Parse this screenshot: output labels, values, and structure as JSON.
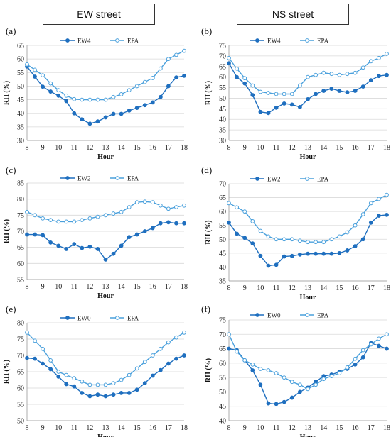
{
  "headers": {
    "left": "EW street",
    "right": "NS street"
  },
  "colors": {
    "ew": "#1f6fbf",
    "epa": "#4aa0dc"
  },
  "chart_data": [
    {
      "id": "a",
      "label": "(a)",
      "type": "line",
      "xlabel": "Hour",
      "ylabel": "RH (%)",
      "xlim": [
        8,
        18
      ],
      "ylim": [
        30,
        65
      ],
      "ytick_step": 5,
      "xticks": [
        8,
        9,
        10,
        11,
        12,
        13,
        14,
        15,
        16,
        17,
        18
      ],
      "x": [
        8,
        8.5,
        9,
        9.5,
        10,
        10.5,
        11,
        11.5,
        12,
        12.5,
        13,
        13.5,
        14,
        14.5,
        15,
        15.5,
        16,
        16.5,
        17,
        17.5,
        18
      ],
      "series": [
        {
          "name": "EW4",
          "style": "filled",
          "values": [
            57.2,
            53.5,
            49.8,
            48.0,
            46.5,
            44.5,
            40.0,
            37.8,
            36.2,
            37.0,
            38.5,
            39.8,
            39.8,
            41.0,
            42.0,
            43.0,
            44.0,
            46.0,
            50.0,
            53.2,
            53.8
          ]
        },
        {
          "name": "EPA",
          "style": "open",
          "values": [
            58.0,
            56.0,
            54.0,
            51.0,
            48.5,
            46.5,
            45.2,
            45.0,
            45.0,
            45.0,
            45.0,
            46.0,
            47.0,
            48.5,
            50.0,
            51.5,
            53.0,
            56.5,
            60.0,
            61.5,
            63.0
          ]
        }
      ]
    },
    {
      "id": "b",
      "label": "(b)",
      "type": "line",
      "xlabel": "Hour",
      "ylabel": "RH (%)",
      "xlim": [
        8,
        18
      ],
      "ylim": [
        30,
        75
      ],
      "ytick_step": 5,
      "xticks": [
        8,
        9,
        10,
        11,
        12,
        13,
        14,
        15,
        16,
        17,
        18
      ],
      "x": [
        8,
        8.5,
        9,
        9.5,
        10,
        10.5,
        11,
        11.5,
        12,
        12.5,
        13,
        13.5,
        14,
        14.5,
        15,
        15.5,
        16,
        16.5,
        17,
        17.5,
        18
      ],
      "series": [
        {
          "name": "EW4",
          "style": "filled",
          "values": [
            66.5,
            60.0,
            57.0,
            51.5,
            43.5,
            43.0,
            45.5,
            47.5,
            47.0,
            45.8,
            49.5,
            52.0,
            53.5,
            54.5,
            53.5,
            52.8,
            53.5,
            55.5,
            58.5,
            60.5,
            61.0
          ]
        },
        {
          "name": "EPA",
          "style": "open",
          "values": [
            69.0,
            64.0,
            59.5,
            56.0,
            53.0,
            52.5,
            52.0,
            52.0,
            52.0,
            56.0,
            60.0,
            61.0,
            62.0,
            61.5,
            61.0,
            61.5,
            62.0,
            64.5,
            67.5,
            69.0,
            71.0
          ]
        }
      ]
    },
    {
      "id": "c",
      "label": "(c)",
      "type": "line",
      "xlabel": "Hour",
      "ylabel": "RH (%)",
      "xlim": [
        8,
        18
      ],
      "ylim": [
        55,
        85
      ],
      "ytick_step": 5,
      "xticks": [
        8,
        9,
        10,
        11,
        12,
        13,
        14,
        15,
        16,
        17,
        18
      ],
      "x": [
        8,
        8.5,
        9,
        9.5,
        10,
        10.5,
        11,
        11.5,
        12,
        12.5,
        13,
        13.5,
        14,
        14.5,
        15,
        15.5,
        16,
        16.5,
        17,
        17.5,
        18
      ],
      "series": [
        {
          "name": "EW2",
          "style": "filled",
          "values": [
            69.0,
            69.0,
            68.8,
            66.5,
            65.5,
            64.5,
            66.0,
            64.8,
            65.2,
            64.5,
            61.2,
            63.0,
            65.5,
            68.2,
            69.0,
            70.0,
            71.0,
            72.5,
            72.8,
            72.5,
            72.5
          ]
        },
        {
          "name": "EPA",
          "style": "open",
          "values": [
            76.0,
            75.0,
            74.0,
            73.5,
            73.0,
            73.0,
            73.0,
            73.5,
            74.0,
            74.5,
            75.0,
            75.5,
            76.0,
            77.5,
            79.0,
            79.2,
            79.0,
            78.0,
            77.0,
            77.5,
            78.0
          ]
        }
      ]
    },
    {
      "id": "d",
      "label": "(d)",
      "type": "line",
      "xlabel": "Hour",
      "ylabel": "RH (%)",
      "xlim": [
        8,
        18
      ],
      "ylim": [
        35,
        70
      ],
      "ytick_step": 5,
      "xticks": [
        8,
        9,
        10,
        11,
        12,
        13,
        14,
        15,
        16,
        17,
        18
      ],
      "x": [
        8,
        8.5,
        9,
        9.5,
        10,
        10.5,
        11,
        11.5,
        12,
        12.5,
        13,
        13.5,
        14,
        14.5,
        15,
        15.5,
        16,
        16.5,
        17,
        17.5,
        18
      ],
      "series": [
        {
          "name": "EW2",
          "style": "filled",
          "values": [
            56.0,
            52.0,
            50.5,
            48.5,
            44.0,
            40.5,
            40.8,
            43.8,
            44.0,
            44.5,
            44.8,
            44.8,
            44.8,
            44.8,
            45.0,
            46.0,
            47.5,
            50.0,
            56.0,
            58.5,
            58.8
          ]
        },
        {
          "name": "EPA",
          "style": "open",
          "values": [
            63.0,
            61.5,
            60.0,
            56.5,
            53.0,
            51.0,
            50.0,
            50.0,
            50.0,
            49.5,
            49.0,
            49.0,
            49.0,
            50.0,
            51.0,
            52.5,
            55.0,
            59.0,
            63.0,
            64.5,
            66.0
          ]
        }
      ]
    },
    {
      "id": "e",
      "label": "(e)",
      "type": "line",
      "xlabel": "Hour",
      "ylabel": "RH (%)",
      "xlim": [
        8,
        18
      ],
      "ylim": [
        50,
        80
      ],
      "ytick_step": 5,
      "xticks": [
        8,
        9,
        10,
        11,
        12,
        13,
        14,
        15,
        16,
        17,
        18
      ],
      "x": [
        8,
        8.5,
        9,
        9.5,
        10,
        10.5,
        11,
        11.5,
        12,
        12.5,
        13,
        13.5,
        14,
        14.5,
        15,
        15.5,
        16,
        16.5,
        17,
        17.5,
        18
      ],
      "series": [
        {
          "name": "EW0",
          "style": "filled",
          "values": [
            69.2,
            69.0,
            67.5,
            65.8,
            63.5,
            61.2,
            60.5,
            58.5,
            57.5,
            58.0,
            57.5,
            58.0,
            58.5,
            58.5,
            59.5,
            61.5,
            63.8,
            65.5,
            67.5,
            69.0,
            70.0
          ]
        },
        {
          "name": "EPA",
          "style": "open",
          "values": [
            77.0,
            74.5,
            72.0,
            68.5,
            65.0,
            64.0,
            63.0,
            62.0,
            61.0,
            61.0,
            61.0,
            61.5,
            62.5,
            64.0,
            66.0,
            68.0,
            70.0,
            72.0,
            74.0,
            75.5,
            77.0
          ]
        }
      ]
    },
    {
      "id": "f",
      "label": "(f)",
      "type": "line",
      "xlabel": "Hour",
      "ylabel": "RH (%)",
      "xlim": [
        8,
        18
      ],
      "ylim": [
        40,
        75
      ],
      "ytick_step": 5,
      "xticks": [
        8,
        9,
        10,
        11,
        12,
        13,
        14,
        15,
        16,
        17,
        18
      ],
      "x": [
        8,
        8.5,
        9,
        9.5,
        10,
        10.5,
        11,
        11.5,
        12,
        12.5,
        13,
        13.5,
        14,
        14.5,
        15,
        15.5,
        16,
        16.5,
        17,
        17.5,
        18
      ],
      "series": [
        {
          "name": "EW0",
          "style": "filled",
          "values": [
            65.0,
            64.5,
            61.0,
            57.5,
            52.5,
            46.0,
            45.8,
            46.5,
            48.0,
            50.0,
            51.5,
            53.5,
            55.5,
            56.0,
            57.0,
            58.0,
            59.5,
            62.0,
            67.0,
            66.0,
            65.0
          ]
        },
        {
          "name": "EPA",
          "style": "open",
          "values": [
            70.0,
            64.0,
            61.0,
            59.5,
            58.0,
            57.5,
            56.5,
            55.0,
            53.5,
            52.5,
            51.0,
            52.5,
            54.5,
            55.5,
            56.5,
            58.5,
            61.5,
            64.5,
            66.5,
            68.5,
            70.0
          ]
        }
      ]
    }
  ]
}
